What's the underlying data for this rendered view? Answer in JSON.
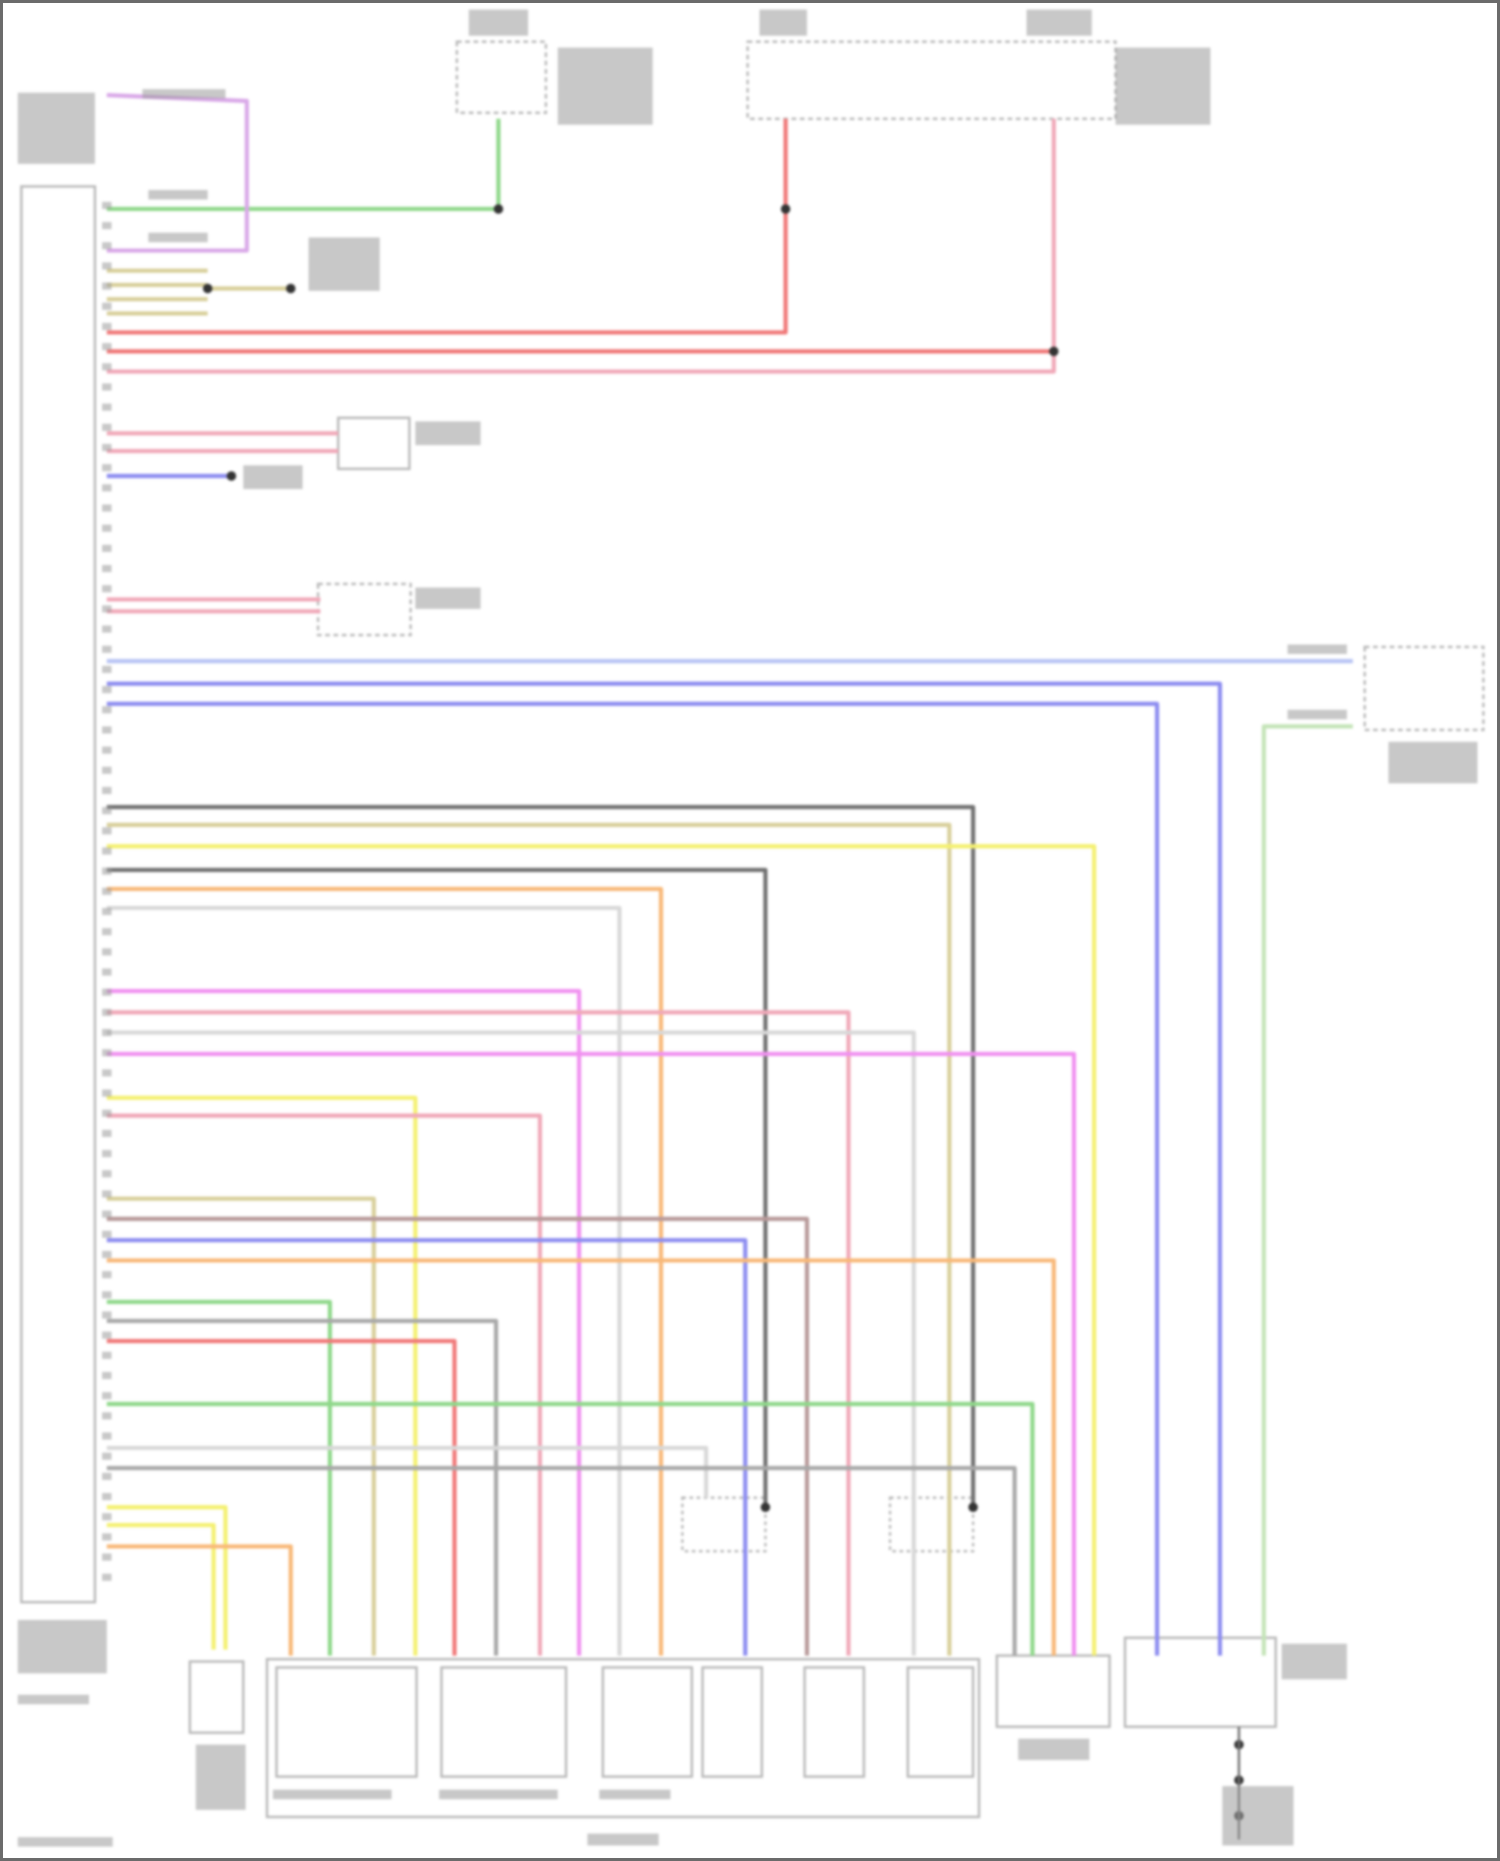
{
  "diagram": {
    "title": "",
    "background": "#ffffff",
    "frame_color": "#6b6b6b",
    "label_color": "#9a9a9a",
    "component_stroke": "#b8b8b8",
    "node_color": "#333333",
    "wire_colors": {
      "green": "#8fd88a",
      "violet": "#d9a8e8",
      "tan": "#d8cf9a",
      "red": "#f07878",
      "pink": "#f0a8b8",
      "blue": "#8c8cf0",
      "lightblue": "#b8c4f4",
      "darkgray": "#707070",
      "gray": "#a8a8a8",
      "lightgray": "#d8d8d8",
      "yellow": "#f4f070",
      "orange": "#f8b878",
      "magenta": "#f090f0",
      "brown": "#b89a9a",
      "lightgreen": "#c4e4b8"
    }
  }
}
